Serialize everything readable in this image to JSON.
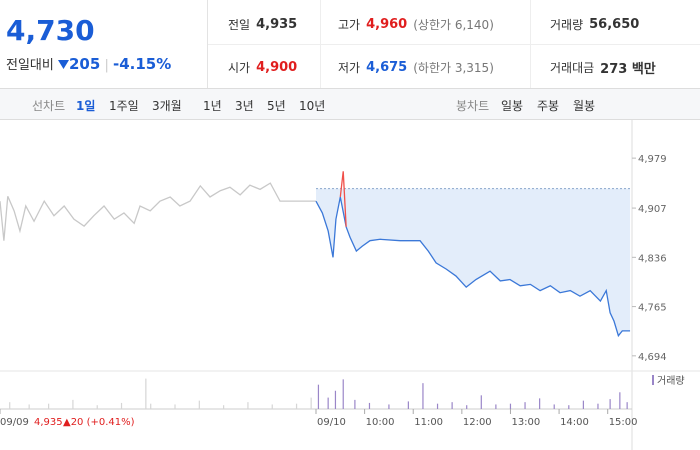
{
  "quote": {
    "price": "4,730",
    "change_label": "전일대비",
    "change": "205",
    "change_pct": "-4.15%"
  },
  "stats": [
    {
      "label": "전일",
      "value": "4,935"
    },
    {
      "label": "고가",
      "value": "4,960",
      "note": "(상한가 6,140)"
    },
    {
      "label": "거래량",
      "value": "56,650"
    },
    {
      "label": "시가",
      "value": "4,900"
    },
    {
      "label": "저가",
      "value": "4,675",
      "note": "(하한가 3,315)"
    },
    {
      "label": "거래대금",
      "value": "273 백만"
    }
  ],
  "tabs": {
    "line_label": "선차트",
    "line": [
      "1일",
      "1주일",
      "3개월",
      "1년",
      "3년",
      "5년",
      "10년"
    ],
    "selected": "1일",
    "candle_label": "봉차트",
    "candle": [
      "일봉",
      "주봉",
      "월봉"
    ]
  },
  "chart_data": {
    "type": "line",
    "xlim": [
      0,
      13
    ],
    "xticks": [
      {
        "value": 0,
        "label": "09/09"
      },
      {
        "value": 6.5,
        "label": "09/10"
      },
      {
        "value": 7.5,
        "label": "10:00"
      },
      {
        "value": 8.5,
        "label": "11:00"
      },
      {
        "value": 9.5,
        "label": "12:00"
      },
      {
        "value": 10.5,
        "label": "13:00"
      },
      {
        "value": 11.5,
        "label": "14:00"
      },
      {
        "value": 12.5,
        "label": "15:00"
      }
    ],
    "ylim": [
      4675,
      5021
    ],
    "yticks": [
      {
        "value": 4979,
        "label": "4,979"
      },
      {
        "value": 4907,
        "label": "4,907"
      },
      {
        "value": 4836,
        "label": "4,836"
      },
      {
        "value": 4765,
        "label": "4,765"
      },
      {
        "value": 4694,
        "label": "4,694"
      }
    ],
    "y2lim": [
      0,
      5000
    ],
    "baseline": 4935,
    "annotation": {
      "close": "4,935",
      "change": "▲20 (+0.41%)"
    },
    "series": [
      {
        "color": "#c8c8c8",
        "x": [
          0,
          0.08,
          0.16,
          0.29,
          0.41,
          0.53,
          0.7,
          0.91,
          1.11,
          1.32,
          1.52,
          1.73,
          1.93,
          2.14,
          2.35,
          2.55,
          2.76,
          2.88,
          3.09,
          3.29,
          3.5,
          3.7,
          3.91,
          4.12,
          4.32,
          4.53,
          4.73,
          4.94,
          5.14,
          5.35,
          5.56,
          5.76,
          5.97,
          6.17,
          6.5
        ],
        "values": [
          4917,
          4860,
          4924,
          4903,
          4874,
          4910,
          4888,
          4917,
          4896,
          4910,
          4891,
          4881,
          4896,
          4910,
          4891,
          4900,
          4885,
          4910,
          4903,
          4917,
          4923,
          4910,
          4917,
          4939,
          4923,
          4932,
          4937,
          4926,
          4940,
          4934,
          4943,
          4917,
          4917,
          4917,
          4917
        ]
      },
      {
        "color": "#3b78d8",
        "fill": "#e3edfa",
        "x": [
          6.5,
          6.63,
          6.75,
          6.85,
          6.91,
          7.0,
          7.12,
          7.2,
          7.33,
          7.45,
          7.61,
          7.82,
          8.23,
          8.64,
          8.81,
          8.97,
          9.18,
          9.38,
          9.59,
          9.79,
          10.08,
          10.29,
          10.49,
          10.7,
          10.91,
          11.11,
          11.32,
          11.52,
          11.73,
          11.93,
          12.14,
          12.35,
          12.47,
          12.55,
          12.63,
          12.72,
          12.8,
          12.96
        ],
        "values": [
          4917,
          4900,
          4874,
          4836,
          4891,
          4923,
          4880,
          4865,
          4845,
          4852,
          4860,
          4862,
          4860,
          4860,
          4845,
          4828,
          4819,
          4809,
          4793,
          4804,
          4816,
          4802,
          4804,
          4795,
          4797,
          4788,
          4795,
          4785,
          4788,
          4780,
          4788,
          4773,
          4788,
          4756,
          4744,
          4723,
          4730,
          4730
        ]
      },
      {
        "color": "#f0504a",
        "x": [
          7.0,
          7.06,
          7.12
        ],
        "values": [
          4923,
          4960,
          4880
        ]
      },
      {
        "name": "거래량",
        "type": "bar",
        "axis": "y2",
        "color": "#9a86c8",
        "x": [
          6.55,
          6.75,
          6.9,
          7.06,
          7.3,
          7.6,
          8.0,
          8.4,
          8.7,
          9.0,
          9.3,
          9.6,
          9.9,
          10.2,
          10.5,
          10.8,
          11.1,
          11.4,
          11.7,
          12.0,
          12.3,
          12.55,
          12.75,
          12.9
        ],
        "values": [
          3200,
          1500,
          2400,
          3900,
          1200,
          800,
          600,
          1000,
          3400,
          700,
          900,
          500,
          1800,
          600,
          700,
          900,
          1400,
          600,
          500,
          1100,
          700,
          1300,
          2200,
          900
        ]
      },
      {
        "type": "bar",
        "axis": "y2",
        "color": "#d6d6d6",
        "x": [
          0.2,
          0.6,
          1.0,
          1.5,
          2.0,
          2.5,
          3.0,
          3.1,
          3.6,
          4.1,
          4.6,
          5.1,
          5.6,
          6.1,
          6.4
        ],
        "values": [
          900,
          600,
          700,
          1200,
          500,
          800,
          4000,
          700,
          600,
          1100,
          500,
          900,
          600,
          700,
          1500
        ]
      }
    ]
  }
}
